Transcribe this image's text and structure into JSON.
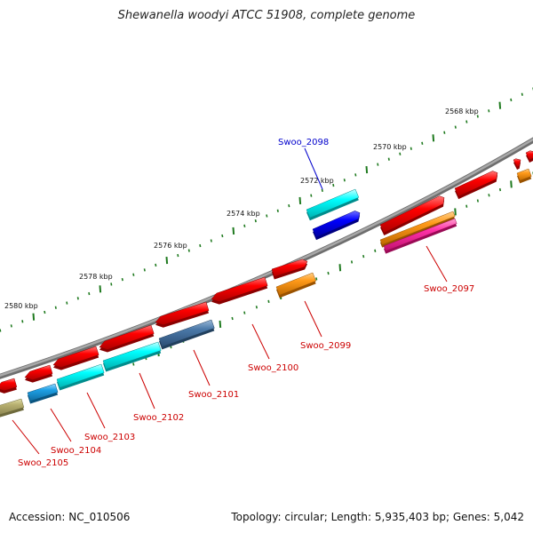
{
  "title": "Shewanella woodyi ATCC 51908, complete genome",
  "accession_text": "Accession: NC_010506",
  "summary_text": "Topology: circular; Length: 5,935,403 bp; Genes: 5,042",
  "ruler_labels": [
    "2568 kbp",
    "2570 kbp",
    "2572 kbp",
    "2574 kbp",
    "2576 kbp",
    "2578 kbp",
    "2580 kbp"
  ],
  "gene_labels": {
    "swoo_2097": "Swoo_2097",
    "swoo_2098": "Swoo_2098",
    "swoo_2099": "Swoo_2099",
    "swoo_2100": "Swoo_2100",
    "swoo_2101": "Swoo_2101",
    "swoo_2102": "Swoo_2102",
    "swoo_2103": "Swoo_2103",
    "swoo_2104": "Swoo_2104",
    "swoo_2105": "Swoo_2105"
  },
  "colors": {
    "backbone": "#8a8a8a",
    "ticks": "#1f7a1f",
    "red": "#ff0000",
    "cyan": "#00ffff",
    "blue": "#0000ff",
    "steel_blue": "#4a78a8",
    "sky_blue": "#1ea0e6",
    "orange": "#ff9a1a",
    "magenta": "#ff33a8",
    "olive": "#b8b070",
    "label_red": "#cc0000",
    "label_blue": "#0000cc"
  }
}
